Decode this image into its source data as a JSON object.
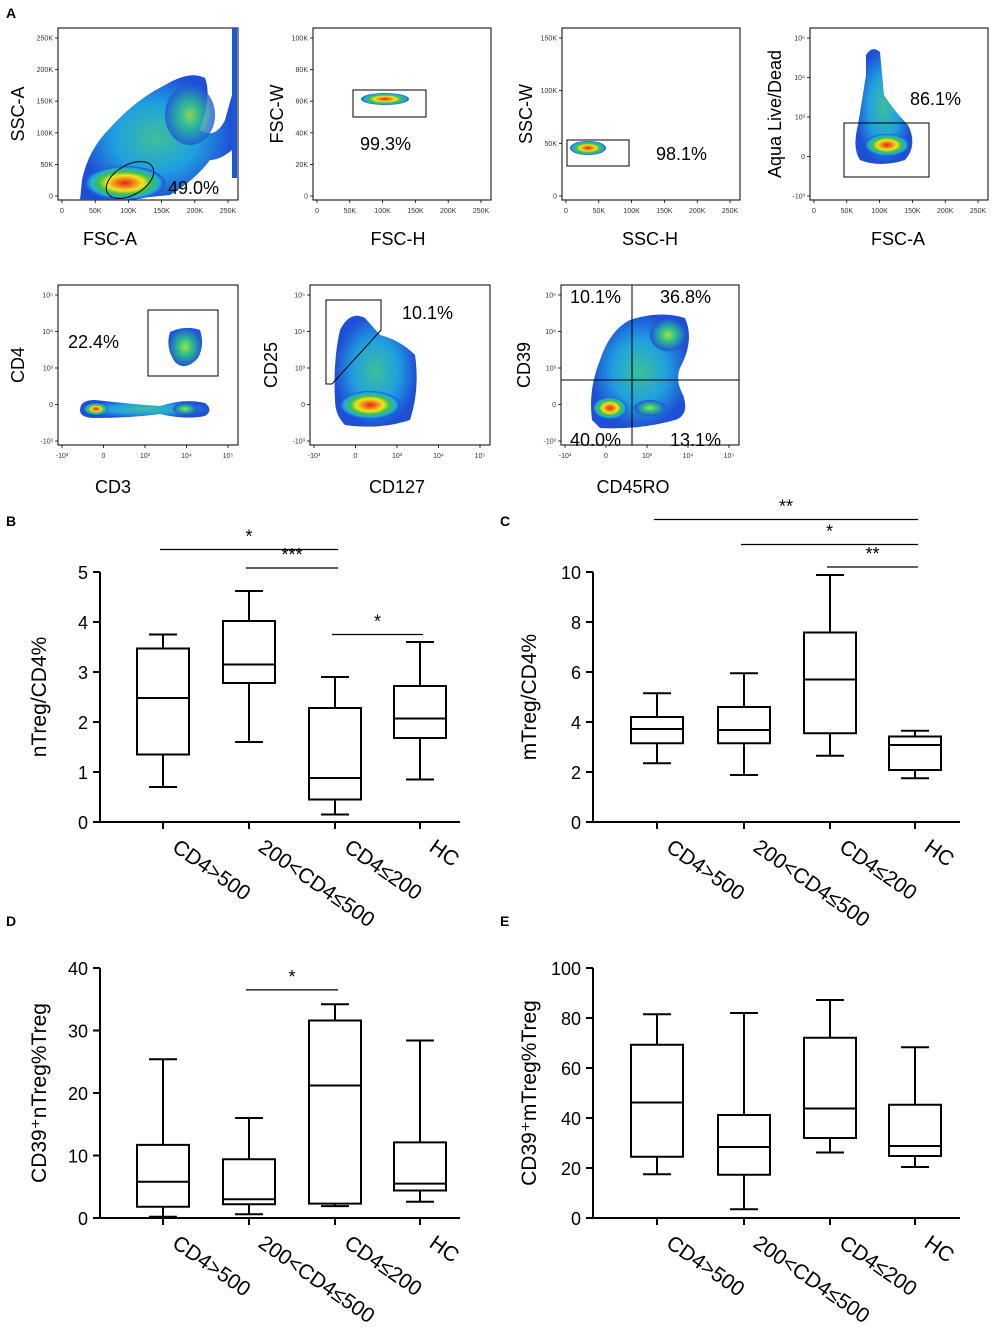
{
  "flow": {
    "panel_label": "A",
    "plots": [
      {
        "xlabel": "FSC-A",
        "ylabel": "SSC-A",
        "gate_pct": "49.0%",
        "xticks": [
          "0",
          "50K",
          "100K",
          "150K",
          "200K",
          "250K"
        ],
        "yticks": [
          "0",
          "50K",
          "100K",
          "150K",
          "200K",
          "250K"
        ]
      },
      {
        "xlabel": "FSC-H",
        "ylabel": "FSC-W",
        "gate_pct": "99.3%",
        "xticks": [
          "0",
          "50K",
          "100K",
          "150K",
          "200K",
          "250K"
        ],
        "yticks": [
          "0",
          "20K",
          "40K",
          "60K",
          "80K",
          "100K"
        ]
      },
      {
        "xlabel": "SSC-H",
        "ylabel": "SSC-W",
        "gate_pct": "98.1%",
        "xticks": [
          "0",
          "50K",
          "100K",
          "150K",
          "200K",
          "250K"
        ],
        "yticks": [
          "0",
          "50K",
          "100K",
          "150K"
        ]
      },
      {
        "xlabel": "FSC-A",
        "ylabel": "Aqua Live/Dead",
        "gate_pct": "86.1%",
        "xticks": [
          "0",
          "50K",
          "100K",
          "150K",
          "200K",
          "250K"
        ],
        "yticks": [
          "-10³",
          "0",
          "10³",
          "10⁴",
          "10⁵"
        ]
      },
      {
        "xlabel": "CD3",
        "ylabel": "CD4",
        "gate_pct": "22.4%",
        "xticks": [
          "-10³",
          "0",
          "10³",
          "10⁴",
          "10⁵"
        ],
        "yticks": [
          "-10³",
          "0",
          "10³",
          "10⁴",
          "10⁵"
        ]
      },
      {
        "xlabel": "CD127",
        "ylabel": "CD25",
        "gate_pct": "10.1%",
        "xticks": [
          "-10³",
          "0",
          "10³",
          "10⁴",
          "10⁵"
        ],
        "yticks": [
          "-10³",
          "0",
          "10³",
          "10⁴",
          "10⁵"
        ]
      },
      {
        "xlabel": "CD45RO",
        "ylabel": "CD39",
        "quad_pcts": {
          "ul": "10.1%",
          "ur": "36.8%",
          "ll": "40.0%",
          "lr": "13.1%"
        },
        "xticks": [
          "-10³",
          "0",
          "10³",
          "10⁴",
          "10⁵"
        ],
        "yticks": [
          "-10³",
          "0",
          "10³",
          "10⁴",
          "10⁵"
        ]
      }
    ]
  },
  "chart_data": [
    {
      "panel": "B",
      "type": "box",
      "ylabel": "nTreg/CD4%",
      "ylim": [
        0,
        5
      ],
      "yticks": [
        "0",
        "1",
        "2",
        "3",
        "4",
        "5"
      ],
      "categories": [
        "CD4>500",
        "200<CD4≤500",
        "CD4≤200",
        "HC"
      ],
      "boxes": [
        {
          "min": 0.7,
          "q1": 1.35,
          "median": 2.48,
          "q3": 3.47,
          "max": 3.75
        },
        {
          "min": 1.6,
          "q1": 2.78,
          "median": 3.15,
          "q3": 4.02,
          "max": 4.62
        },
        {
          "min": 0.15,
          "q1": 0.45,
          "median": 0.88,
          "q3": 2.28,
          "max": 2.9
        },
        {
          "min": 0.85,
          "q1": 1.68,
          "median": 2.07,
          "q3": 2.72,
          "max": 3.6
        }
      ],
      "sig": [
        {
          "from": 0,
          "to": 2,
          "label": "*",
          "y": 5.45
        },
        {
          "from": 1,
          "to": 2,
          "label": "***",
          "y": 5.08
        },
        {
          "from": 2,
          "to": 3,
          "label": "*",
          "y": 3.75
        }
      ]
    },
    {
      "panel": "C",
      "type": "box",
      "ylabel": "mTreg/CD4%",
      "ylim": [
        0,
        10
      ],
      "yticks": [
        "0",
        "2",
        "4",
        "6",
        "8",
        "10"
      ],
      "categories": [
        "CD4>500",
        "200<CD4≤500",
        "CD4≤200",
        "HC"
      ],
      "boxes": [
        {
          "min": 2.35,
          "q1": 3.15,
          "median": 3.72,
          "q3": 4.2,
          "max": 5.15
        },
        {
          "min": 1.88,
          "q1": 3.15,
          "median": 3.68,
          "q3": 4.6,
          "max": 5.95
        },
        {
          "min": 2.65,
          "q1": 3.55,
          "median": 5.7,
          "q3": 7.58,
          "max": 9.88
        },
        {
          "min": 1.75,
          "q1": 2.08,
          "median": 3.08,
          "q3": 3.42,
          "max": 3.65
        }
      ],
      "sig": [
        {
          "from": 0,
          "to": 3,
          "label": "**",
          "y": 12.1
        },
        {
          "from": 1,
          "to": 3,
          "label": "*",
          "y": 11.1
        },
        {
          "from": 2,
          "to": 3,
          "label": "**",
          "y": 10.2
        }
      ]
    },
    {
      "panel": "D",
      "type": "box",
      "ylabel": "CD39⁺nTreg%Treg",
      "ylim": [
        0,
        40
      ],
      "yticks": [
        "0",
        "10",
        "20",
        "30",
        "40"
      ],
      "categories": [
        "CD4>500",
        "200<CD4≤500",
        "CD4≤200",
        "HC"
      ],
      "boxes": [
        {
          "min": 0.2,
          "q1": 1.8,
          "median": 5.8,
          "q3": 11.7,
          "max": 25.4
        },
        {
          "min": 0.6,
          "q1": 2.2,
          "median": 3.0,
          "q3": 9.4,
          "max": 16.0
        },
        {
          "min": 1.9,
          "q1": 2.3,
          "median": 21.2,
          "q3": 31.6,
          "max": 34.2
        },
        {
          "min": 2.6,
          "q1": 4.4,
          "median": 5.5,
          "q3": 12.1,
          "max": 28.4
        }
      ],
      "sig": [
        {
          "from": 1,
          "to": 2,
          "label": "*",
          "y": 36.5
        }
      ]
    },
    {
      "panel": "E",
      "type": "box",
      "ylabel": "CD39⁺mTreg%Treg",
      "ylim": [
        0,
        100
      ],
      "yticks": [
        "0",
        "20",
        "40",
        "60",
        "80",
        "100"
      ],
      "categories": [
        "CD4>500",
        "200<CD4≤500",
        "CD4≤200",
        "HC"
      ],
      "boxes": [
        {
          "min": 17.5,
          "q1": 24.5,
          "median": 46.2,
          "q3": 69.3,
          "max": 81.5
        },
        {
          "min": 3.5,
          "q1": 17.3,
          "median": 28.4,
          "q3": 41.2,
          "max": 82.0
        },
        {
          "min": 26.2,
          "q1": 32.0,
          "median": 43.8,
          "q3": 72.1,
          "max": 87.2
        },
        {
          "min": 20.4,
          "q1": 24.8,
          "median": 28.8,
          "q3": 45.3,
          "max": 68.3
        }
      ],
      "sig": []
    }
  ],
  "colors": {
    "axis": "#000000",
    "density_high": "#e8221c",
    "density_mid": "#f2e61a",
    "density_low": "#2fb94a",
    "density_edge": "#1f4fd6"
  }
}
